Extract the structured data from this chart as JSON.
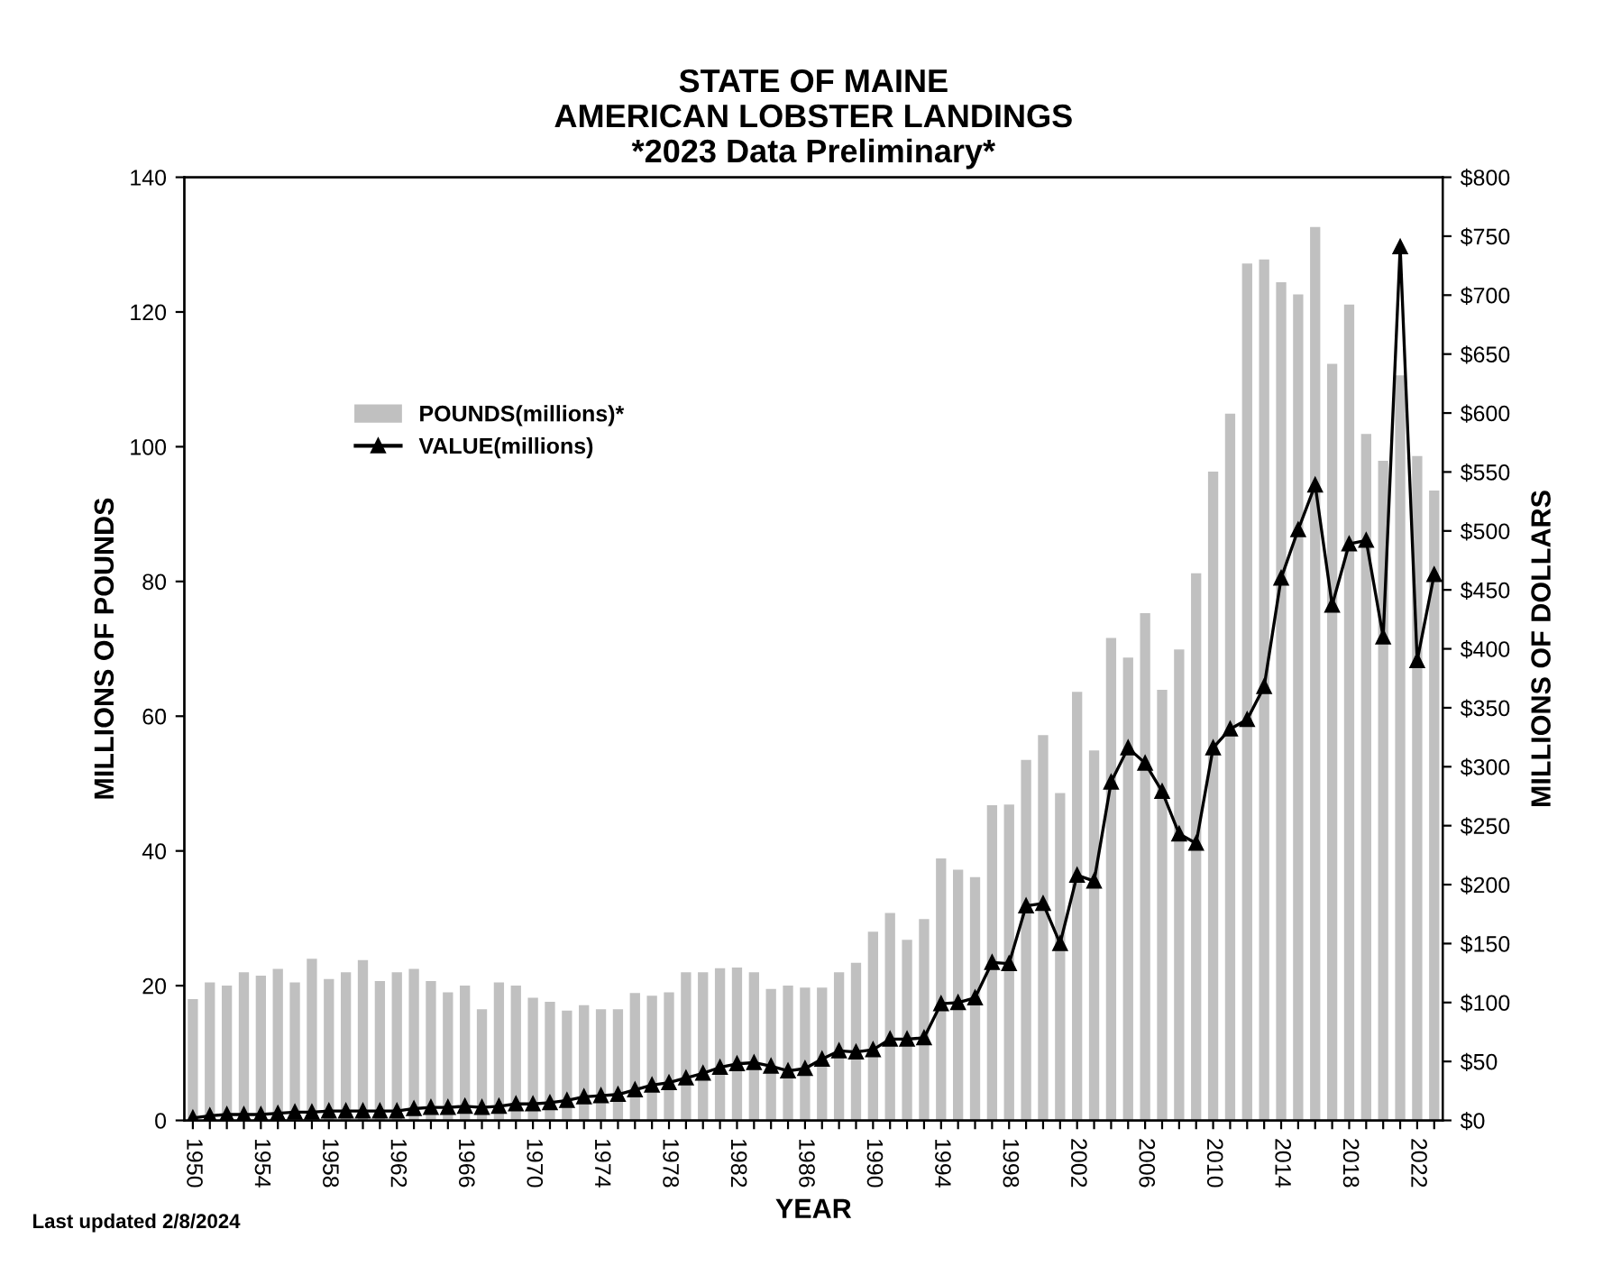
{
  "chart_data": {
    "type": "bar",
    "title": "STATE OF MAINE\nAMERICAN LOBSTER LANDINGS\n*2023 Data Preliminary*",
    "xlabel": "YEAR",
    "ylabel": "MILLIONS OF POUNDS",
    "y2label": "MILLIONS OF DOLLARS",
    "categories": [
      "1950",
      null,
      null,
      null,
      "1954",
      null,
      null,
      null,
      "1958",
      null,
      null,
      null,
      "1962",
      null,
      null,
      null,
      "1966",
      null,
      null,
      null,
      "1970",
      null,
      null,
      null,
      "1974",
      null,
      null,
      null,
      "1978",
      null,
      null,
      null,
      "1982",
      null,
      null,
      null,
      "1986",
      null,
      null,
      null,
      "1990",
      null,
      null,
      null,
      "1994",
      null,
      null,
      null,
      "1998",
      null,
      null,
      null,
      "2002",
      null,
      null,
      null,
      "2006",
      null,
      null,
      null,
      "2010",
      null,
      null,
      null,
      "2014",
      null,
      null,
      null,
      "2018",
      null,
      null,
      null,
      "2022",
      null
    ],
    "series": [
      {
        "name": "POUNDS(millions)*",
        "color": "#c0c0c0",
        "values": [
          18,
          20.5,
          20,
          22,
          21.5,
          22.5,
          20.5,
          24,
          21,
          22,
          23.8,
          20.7,
          22,
          22.5,
          20.7,
          19,
          20,
          16.5,
          20.5,
          20,
          18.2,
          17.6,
          16.3,
          17.1,
          16.5,
          16.5,
          18.9,
          18.5,
          19,
          22,
          22,
          22.6,
          22.7,
          22,
          19.5,
          20,
          19.7,
          19.7,
          22,
          23.4,
          28,
          30.8,
          26.8,
          29.9,
          38.9,
          37.2,
          36.1,
          46.8,
          46.9,
          53.5,
          57.2,
          48.6,
          63.6,
          54.9,
          71.6,
          68.7,
          75.3,
          63.9,
          69.9,
          81.2,
          96.3,
          104.9,
          127.2,
          127.8,
          124.4,
          122.6,
          132.6,
          112.3,
          121.1,
          101.9,
          97.9,
          110.6,
          98.6,
          93.5
        ]
      },
      {
        "name": "VALUE(millions)",
        "type": "line",
        "axis": "y2",
        "color": "#000000",
        "marker": "triangle",
        "line_style": "solid",
        "values": [
          2,
          4,
          5,
          5,
          5,
          6,
          7,
          7,
          8,
          8,
          8,
          8,
          8,
          10,
          11,
          11,
          12,
          11,
          12,
          14,
          14,
          15,
          17,
          20,
          21,
          22,
          26,
          30,
          32,
          36,
          40,
          45,
          48,
          49,
          46,
          42,
          44,
          52,
          59,
          58,
          60,
          69,
          69,
          70,
          99,
          100,
          104,
          134,
          133,
          182,
          184,
          150,
          208,
          203,
          287,
          316,
          303,
          279,
          243,
          235,
          316,
          332,
          340,
          368,
          460,
          501,
          539,
          437,
          489,
          492,
          410,
          741,
          390,
          463
        ]
      }
    ],
    "ylim": [
      0,
      140
    ],
    "yticks": [
      0,
      20,
      40,
      60,
      80,
      100,
      120,
      140
    ],
    "y2lim": [
      0,
      800
    ],
    "y2ticks": [
      {
        "value": 0,
        "label": "$0"
      },
      {
        "value": 50,
        "label": "$50"
      },
      {
        "value": 100,
        "label": "$100"
      },
      {
        "value": 150,
        "label": "$150"
      },
      {
        "value": 200,
        "label": "$200"
      },
      {
        "value": 250,
        "label": "$250"
      },
      {
        "value": 300,
        "label": "$300"
      },
      {
        "value": 350,
        "label": "$350"
      },
      {
        "value": 400,
        "label": "$400"
      },
      {
        "value": 450,
        "label": "$450"
      },
      {
        "value": 500,
        "label": "$500"
      },
      {
        "value": 550,
        "label": "$550"
      },
      {
        "value": 600,
        "label": "$600"
      },
      {
        "value": 650,
        "label": "$650"
      },
      {
        "value": 700,
        "label": "$700"
      },
      {
        "value": 750,
        "label": "$750"
      },
      {
        "value": 800,
        "label": "$800"
      }
    ],
    "legend": "top left",
    "grid": false,
    "annotations": [
      "Last updated 2/8/2024"
    ]
  }
}
